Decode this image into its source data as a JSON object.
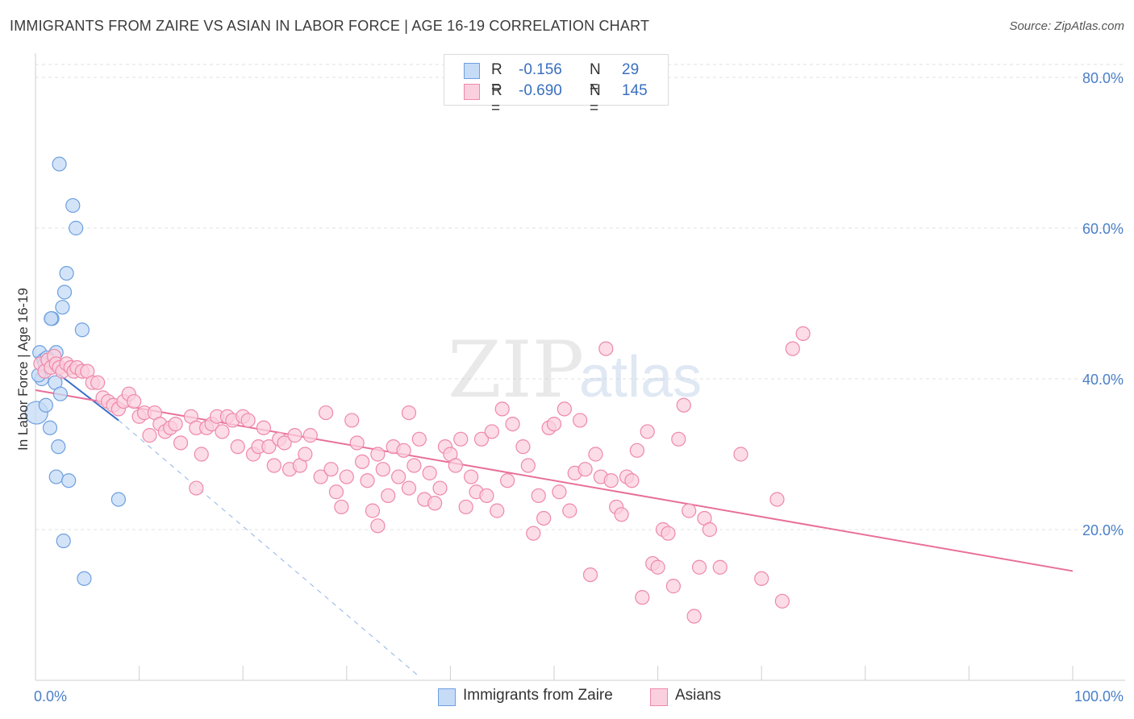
{
  "title": "IMMIGRANTS FROM ZAIRE VS ASIAN IN LABOR FORCE | AGE 16-19 CORRELATION CHART",
  "source": "Source: ZipAtlas.com",
  "watermark": {
    "zip": "ZIP",
    "atlas": "atlas"
  },
  "legend": {
    "rows": [
      {
        "r_label": "R =",
        "r_value": "-0.156",
        "n_label": "N =",
        "n_value": "29",
        "color": "#a8c8f0",
        "border": "#6d9fe0"
      },
      {
        "r_label": "R =",
        "r_value": "-0.690",
        "n_label": "N =",
        "n_value": "145",
        "color": "#f7b9cd",
        "border": "#ee88aa"
      }
    ]
  },
  "bottom_legend": [
    {
      "label": "Immigrants from Zaire",
      "color": "#c6dbf6",
      "border": "#6d9fe0"
    },
    {
      "label": "Asians",
      "color": "#fbd0de",
      "border": "#ee88aa"
    }
  ],
  "chart_data": {
    "type": "scatter",
    "title": "IMMIGRANTS FROM ZAIRE VS ASIAN IN LABOR FORCE | AGE 16-19 CORRELATION CHART",
    "xlabel": "",
    "ylabel": "In Labor Force | Age 16-19",
    "xlim": [
      0,
      100
    ],
    "ylim": [
      0,
      80
    ],
    "x_ticks": [
      "0.0%",
      "100.0%"
    ],
    "y_ticks": [
      {
        "value": 20,
        "label": "20.0%"
      },
      {
        "value": 40,
        "label": "40.0%"
      },
      {
        "value": 60,
        "label": "60.0%"
      },
      {
        "value": 80,
        "label": "80.0%"
      }
    ],
    "grid": "horizontal dashed",
    "legend_position": "top-center",
    "series": [
      {
        "name": "Immigrants from Zaire",
        "color": "#6d9fe0",
        "fill": "#c6dbf6",
        "points": [
          [
            0.1,
            35.5
          ],
          [
            0.4,
            43.5
          ],
          [
            0.6,
            40.0
          ],
          [
            0.8,
            42.5
          ],
          [
            1.0,
            36.5
          ],
          [
            1.2,
            42.5
          ],
          [
            1.4,
            33.5
          ],
          [
            1.6,
            48.0
          ],
          [
            1.5,
            48.0
          ],
          [
            1.8,
            42.0
          ],
          [
            1.9,
            39.5
          ],
          [
            2.0,
            43.5
          ],
          [
            2.0,
            27.0
          ],
          [
            2.2,
            31.0
          ],
          [
            2.3,
            68.5
          ],
          [
            2.4,
            38.0
          ],
          [
            2.6,
            49.5
          ],
          [
            2.7,
            18.5
          ],
          [
            2.8,
            51.5
          ],
          [
            3.0,
            54.0
          ],
          [
            3.2,
            26.5
          ],
          [
            3.6,
            63.0
          ],
          [
            3.9,
            60.0
          ],
          [
            4.5,
            46.5
          ],
          [
            4.7,
            13.5
          ],
          [
            8.0,
            24.0
          ],
          [
            0.9,
            42.0
          ],
          [
            1.1,
            42.8
          ],
          [
            0.3,
            40.5
          ]
        ],
        "trend_solid": [
          [
            0.0,
            43.0
          ],
          [
            8.0,
            34.5
          ]
        ],
        "trend_dashed": [
          [
            8.0,
            34.5
          ],
          [
            37.0,
            0.5
          ]
        ]
      },
      {
        "name": "Asians",
        "color": "#ee88aa",
        "fill": "#fbd0de",
        "points": [
          [
            0.5,
            42.0
          ],
          [
            0.9,
            41.0
          ],
          [
            1.2,
            42.5
          ],
          [
            1.5,
            41.5
          ],
          [
            1.8,
            43.0
          ],
          [
            2.0,
            42.0
          ],
          [
            2.3,
            41.5
          ],
          [
            2.6,
            41.0
          ],
          [
            3.0,
            42.0
          ],
          [
            3.4,
            41.5
          ],
          [
            3.7,
            41.0
          ],
          [
            4.0,
            41.5
          ],
          [
            4.5,
            41.0
          ],
          [
            5.0,
            41.0
          ],
          [
            5.5,
            39.5
          ],
          [
            6.0,
            39.5
          ],
          [
            6.5,
            37.5
          ],
          [
            7.0,
            37.0
          ],
          [
            7.5,
            36.5
          ],
          [
            8.0,
            36.0
          ],
          [
            8.5,
            37.0
          ],
          [
            9.0,
            38.0
          ],
          [
            9.5,
            37.0
          ],
          [
            10.0,
            35.0
          ],
          [
            10.5,
            35.5
          ],
          [
            11.0,
            32.5
          ],
          [
            11.5,
            35.5
          ],
          [
            12.0,
            34.0
          ],
          [
            12.5,
            33.0
          ],
          [
            13.0,
            33.5
          ],
          [
            13.5,
            34.0
          ],
          [
            14.0,
            31.5
          ],
          [
            15.0,
            35.0
          ],
          [
            15.5,
            33.5
          ],
          [
            16.0,
            30.0
          ],
          [
            16.5,
            33.5
          ],
          [
            17.0,
            34.0
          ],
          [
            17.5,
            35.0
          ],
          [
            18.0,
            33.0
          ],
          [
            18.5,
            35.0
          ],
          [
            19.0,
            34.5
          ],
          [
            19.5,
            31.0
          ],
          [
            20.0,
            35.0
          ],
          [
            20.5,
            34.5
          ],
          [
            21.0,
            30.0
          ],
          [
            21.5,
            31.0
          ],
          [
            22.0,
            33.5
          ],
          [
            22.5,
            31.0
          ],
          [
            23.0,
            28.5
          ],
          [
            23.5,
            32.0
          ],
          [
            24.0,
            31.5
          ],
          [
            24.5,
            28.0
          ],
          [
            25.0,
            32.5
          ],
          [
            25.5,
            28.5
          ],
          [
            26.0,
            30.0
          ],
          [
            26.5,
            32.5
          ],
          [
            27.5,
            27.0
          ],
          [
            28.0,
            35.5
          ],
          [
            28.5,
            28.0
          ],
          [
            29.0,
            25.0
          ],
          [
            29.5,
            23.0
          ],
          [
            30.0,
            27.0
          ],
          [
            30.5,
            34.5
          ],
          [
            31.0,
            31.5
          ],
          [
            31.5,
            29.0
          ],
          [
            32.0,
            26.5
          ],
          [
            32.5,
            22.5
          ],
          [
            33.0,
            30.0
          ],
          [
            33.5,
            28.0
          ],
          [
            34.0,
            24.5
          ],
          [
            34.5,
            31.0
          ],
          [
            35.0,
            27.0
          ],
          [
            35.5,
            30.5
          ],
          [
            36.0,
            25.5
          ],
          [
            36.5,
            28.5
          ],
          [
            37.0,
            32.0
          ],
          [
            37.5,
            24.0
          ],
          [
            38.0,
            27.5
          ],
          [
            38.5,
            23.5
          ],
          [
            39.0,
            25.5
          ],
          [
            39.5,
            31.0
          ],
          [
            40.0,
            30.0
          ],
          [
            40.5,
            28.5
          ],
          [
            41.0,
            32.0
          ],
          [
            41.5,
            23.0
          ],
          [
            42.0,
            27.0
          ],
          [
            42.5,
            25.0
          ],
          [
            43.0,
            32.0
          ],
          [
            43.5,
            24.5
          ],
          [
            44.0,
            33.0
          ],
          [
            44.5,
            22.5
          ],
          [
            45.0,
            36.0
          ],
          [
            45.5,
            26.5
          ],
          [
            46.0,
            34.0
          ],
          [
            47.0,
            31.0
          ],
          [
            47.5,
            28.5
          ],
          [
            48.0,
            19.5
          ],
          [
            48.5,
            24.5
          ],
          [
            49.0,
            21.5
          ],
          [
            49.5,
            33.5
          ],
          [
            50.0,
            34.0
          ],
          [
            50.5,
            25.0
          ],
          [
            51.0,
            36.0
          ],
          [
            51.5,
            22.5
          ],
          [
            52.0,
            27.5
          ],
          [
            52.5,
            34.5
          ],
          [
            53.0,
            28.0
          ],
          [
            53.5,
            14.0
          ],
          [
            54.0,
            30.0
          ],
          [
            54.5,
            27.0
          ],
          [
            55.0,
            44.0
          ],
          [
            55.5,
            26.5
          ],
          [
            56.0,
            23.0
          ],
          [
            56.5,
            22.0
          ],
          [
            57.0,
            27.0
          ],
          [
            57.5,
            26.5
          ],
          [
            58.0,
            30.5
          ],
          [
            58.5,
            11.0
          ],
          [
            59.0,
            33.0
          ],
          [
            59.5,
            15.5
          ],
          [
            60.0,
            15.0
          ],
          [
            60.5,
            20.0
          ],
          [
            61.0,
            19.5
          ],
          [
            61.5,
            12.5
          ],
          [
            62.0,
            32.0
          ],
          [
            62.5,
            36.5
          ],
          [
            63.0,
            22.5
          ],
          [
            63.5,
            8.5
          ],
          [
            64.0,
            15.0
          ],
          [
            64.5,
            21.5
          ],
          [
            65.0,
            20.0
          ],
          [
            66.0,
            15.0
          ],
          [
            68.0,
            30.0
          ],
          [
            70.0,
            13.5
          ],
          [
            71.5,
            24.0
          ],
          [
            72.0,
            10.5
          ],
          [
            73.0,
            44.0
          ],
          [
            74.0,
            46.0
          ],
          [
            33.0,
            20.5
          ],
          [
            15.5,
            25.5
          ],
          [
            36.0,
            35.5
          ]
        ],
        "trend_solid": [
          [
            0.0,
            38.5
          ],
          [
            100.0,
            14.5
          ]
        ]
      }
    ]
  }
}
